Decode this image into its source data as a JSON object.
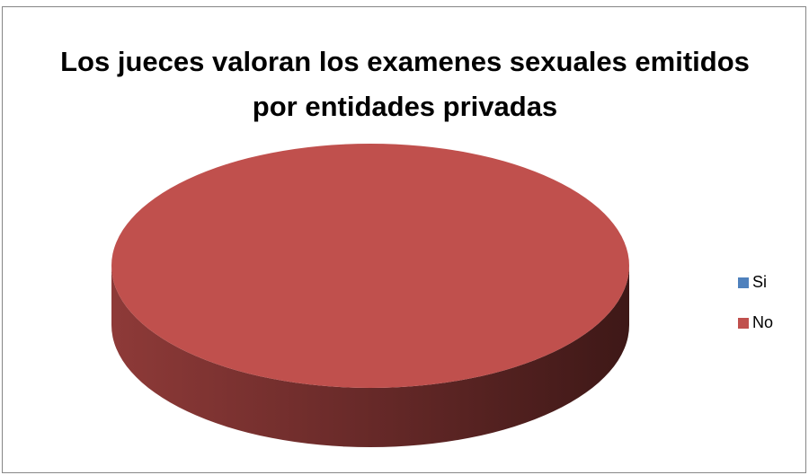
{
  "chart_data": {
    "type": "pie",
    "title": "Los jueces valoran los examenes sexuales emitidos por entidades privadas",
    "categories": [
      "Si",
      "No"
    ],
    "values": [
      0,
      100
    ],
    "colors": [
      "#4f81bd",
      "#c0504d"
    ],
    "legend_position": "right",
    "three_d": true
  }
}
